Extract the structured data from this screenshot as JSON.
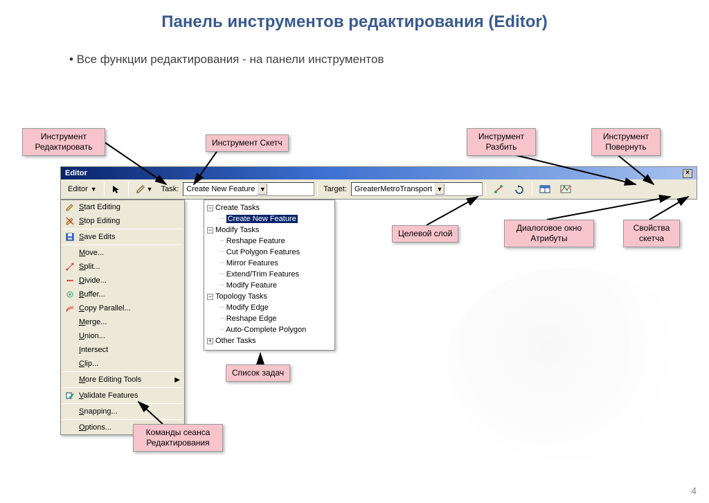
{
  "slide": {
    "title": "Панель инструментов редактирования (Editor)",
    "bullet": "Все функции редактирования - на панели инструментов",
    "page_number": "4"
  },
  "callouts": {
    "edit_tool": "Инструмент\nРедактировать",
    "sketch_tool": "Инструмент Скетч",
    "split_tool": "Инструмент\nРазбить",
    "rotate_tool": "Инструмент\nПовернуть",
    "target_layer": "Целевой слой",
    "attributes_dialog": "Диалоговое окно\nАтрибуты",
    "sketch_props": "Свойства\nскетча",
    "task_list": "Список задач",
    "session_commands": "Команды сеанса\nРедактирования"
  },
  "editor": {
    "title": "Editor",
    "menu_button": "Editor",
    "task_label": "Task:",
    "task_value": "Create New Feature",
    "target_label": "Target:",
    "target_value": "GreaterMetroTransport"
  },
  "menu": {
    "items": [
      {
        "label": "Start Editing",
        "icon": "pencil-start"
      },
      {
        "label": "Stop Editing",
        "icon": "pencil-stop"
      },
      {
        "sep": true
      },
      {
        "label": "Save Edits",
        "icon": "save"
      },
      {
        "sep": true
      },
      {
        "label": "Move..."
      },
      {
        "label": "Split...",
        "icon": "split"
      },
      {
        "label": "Divide...",
        "icon": "divide"
      },
      {
        "label": "Buffer...",
        "icon": "buffer"
      },
      {
        "label": "Copy Parallel...",
        "icon": "copy-parallel"
      },
      {
        "label": "Merge..."
      },
      {
        "label": "Union..."
      },
      {
        "label": "Intersect"
      },
      {
        "label": "Clip..."
      },
      {
        "sep": true
      },
      {
        "label": "More Editing Tools",
        "submenu": true
      },
      {
        "sep": true
      },
      {
        "label": "Validate Features",
        "icon": "validate"
      },
      {
        "sep": true
      },
      {
        "label": "Snapping..."
      },
      {
        "sep": true
      },
      {
        "label": "Options..."
      }
    ]
  },
  "tasktree": {
    "nodes": [
      {
        "level": 0,
        "expander": "-",
        "label": "Create Tasks"
      },
      {
        "level": 1,
        "label": "Create New Feature",
        "selected": true
      },
      {
        "level": 0,
        "expander": "-",
        "label": "Modify Tasks"
      },
      {
        "level": 1,
        "label": "Reshape Feature"
      },
      {
        "level": 1,
        "label": "Cut Polygon Features"
      },
      {
        "level": 1,
        "label": "Mirror Features"
      },
      {
        "level": 1,
        "label": "Extend/Trim Features"
      },
      {
        "level": 1,
        "label": "Modify Feature"
      },
      {
        "level": 0,
        "expander": "-",
        "label": "Topology Tasks"
      },
      {
        "level": 1,
        "label": "Modify Edge"
      },
      {
        "level": 1,
        "label": "Reshape Edge"
      },
      {
        "level": 1,
        "label": "Auto-Complete Polygon"
      },
      {
        "level": 0,
        "expander": "+",
        "label": "Other Tasks"
      }
    ]
  },
  "colors": {
    "callout_bg": "#f7c4cc",
    "title_color": "#3a5a8a",
    "titlebar_start": "#0a246a",
    "titlebar_end": "#a6c2ef",
    "toolbar_bg": "#ece9d8"
  }
}
